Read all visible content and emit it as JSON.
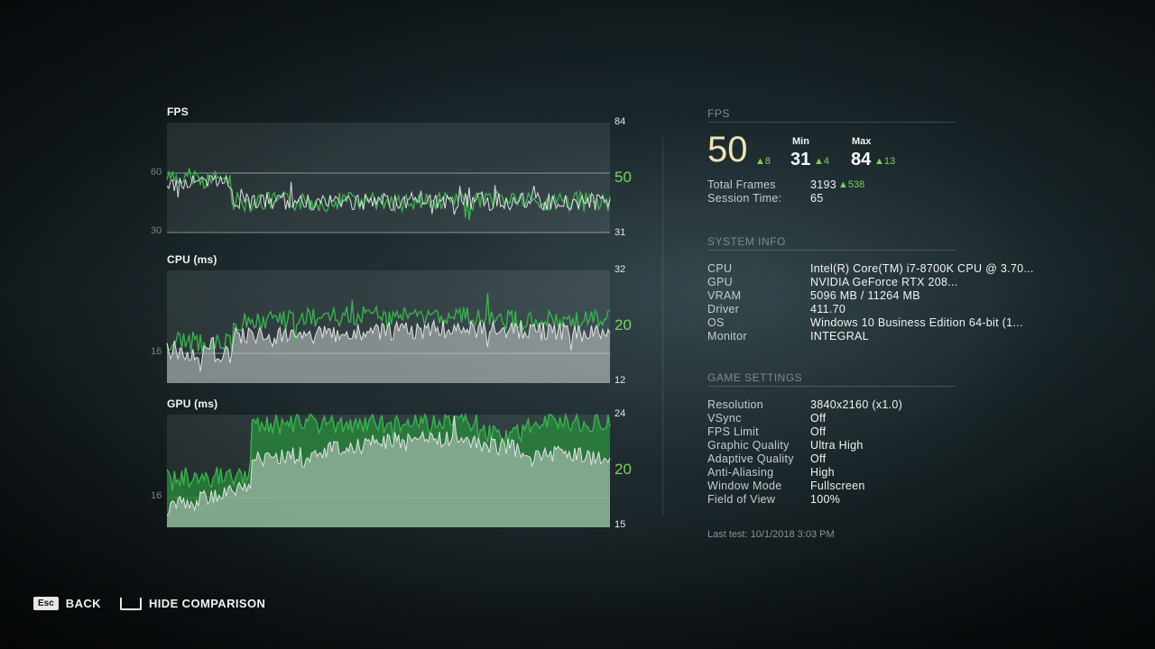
{
  "graphs": {
    "fps": {
      "title": "FPS",
      "top": "84",
      "current": "50",
      "bottom": "31",
      "grid_hi": "60",
      "grid_lo": "30"
    },
    "cpu": {
      "title": "CPU (ms)",
      "top": "32",
      "current": "20",
      "bottom": "12",
      "grid_lo": "16"
    },
    "gpu": {
      "title": "GPU (ms)",
      "top": "24",
      "current": "20",
      "bottom": "15",
      "grid_lo": "16"
    }
  },
  "fps_panel": {
    "section_title": "FPS",
    "current": "50",
    "current_delta": "▲8",
    "min_label": "Min",
    "min": "31",
    "min_delta": "▲4",
    "max_label": "Max",
    "max": "84",
    "max_delta": "▲13",
    "total_frames_label": "Total Frames",
    "total_frames": "3193",
    "total_frames_delta": "▲538",
    "session_time_label": "Session Time:",
    "session_time": "65"
  },
  "system_info": {
    "section_title": "SYSTEM INFO",
    "rows": [
      {
        "label": "CPU",
        "value": "Intel(R) Core(TM) i7-8700K CPU @ 3.70..."
      },
      {
        "label": "GPU",
        "value": "NVIDIA GeForce RTX 208..."
      },
      {
        "label": "VRAM",
        "value": "5096 MB / 11264 MB"
      },
      {
        "label": "Driver",
        "value": "411.70"
      },
      {
        "label": "OS",
        "value": "Windows 10 Business Edition 64-bit (1..."
      },
      {
        "label": "Monitor",
        "value": "INTEGRAL"
      }
    ]
  },
  "game_settings": {
    "section_title": "GAME SETTINGS",
    "rows": [
      {
        "label": "Resolution",
        "value": "3840x2160 (x1.0)"
      },
      {
        "label": "VSync",
        "value": "Off"
      },
      {
        "label": "FPS Limit",
        "value": "Off"
      },
      {
        "label": "Graphic Quality",
        "value": "Ultra High"
      },
      {
        "label": "Adaptive Quality",
        "value": "Off"
      },
      {
        "label": "Anti-Aliasing",
        "value": "High"
      },
      {
        "label": "Window Mode",
        "value": "Fullscreen"
      },
      {
        "label": "Field of View",
        "value": "100%"
      }
    ]
  },
  "last_test": "Last test: 10/1/2018 3:03 PM",
  "footer": {
    "back_key": "Esc",
    "back_label": "BACK",
    "hide_label": "HIDE COMPARISON"
  },
  "colors": {
    "accent_green": "#7ad35a",
    "series_green": "#2f8f3e",
    "series_white": "#e9e9e9",
    "fps_big": "#ede4b5"
  }
}
